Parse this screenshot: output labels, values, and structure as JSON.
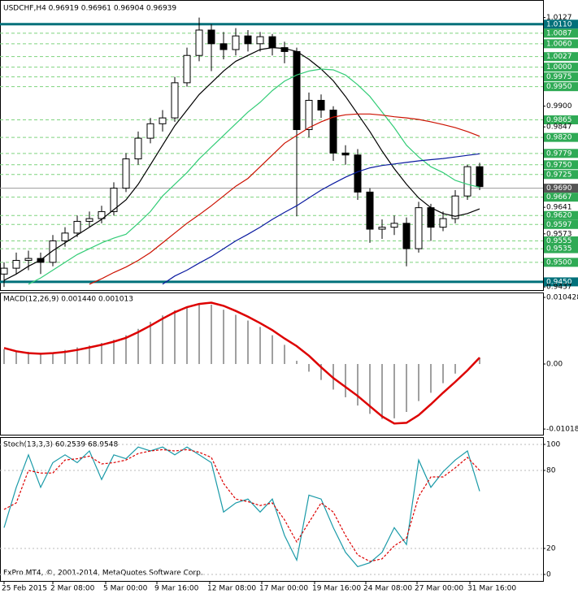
{
  "chart_data": [
    {
      "type": "candlestick",
      "title": "USDCHF,H4  0.96919 0.96961 0.96904 0.96939",
      "open": [
        0.947,
        0.9485,
        0.9505,
        0.951,
        0.95,
        0.9555,
        0.9575,
        0.9605,
        0.9612,
        0.963,
        0.969,
        0.9765,
        0.9818,
        0.9855,
        0.987,
        0.996,
        1.003,
        1.0095,
        1.006,
        1.0045,
        1.008,
        1.006,
        1.0078,
        1.005,
        1.004,
        0.984,
        0.9915,
        0.989,
        0.978,
        0.9775,
        0.968,
        0.9585,
        0.959,
        0.96,
        0.9535,
        0.964,
        0.959,
        0.9612,
        0.967,
        0.9745
      ],
      "high": [
        0.95,
        0.9525,
        0.953,
        0.9525,
        0.957,
        0.959,
        0.962,
        0.963,
        0.9645,
        0.9705,
        0.978,
        0.9835,
        0.987,
        0.989,
        0.9975,
        1.005,
        1.0127,
        1.011,
        1.009,
        1.01,
        1.0095,
        1.009,
        1.0085,
        1.0065,
        1.005,
        0.9935,
        0.993,
        0.99,
        0.98,
        0.979,
        0.969,
        0.961,
        0.962,
        0.9615,
        0.9655,
        0.965,
        0.963,
        0.9685,
        0.975,
        0.9755
      ],
      "low": [
        0.9437,
        0.947,
        0.948,
        0.947,
        0.949,
        0.954,
        0.9565,
        0.959,
        0.96,
        0.962,
        0.968,
        0.975,
        0.9805,
        0.9835,
        0.986,
        0.995,
        1.0015,
        0.999,
        1.002,
        1.003,
        1.004,
        1.004,
        1.003,
        1.001,
        0.9618,
        0.982,
        0.987,
        0.976,
        0.975,
        0.966,
        0.955,
        0.956,
        0.957,
        0.949,
        0.9525,
        0.9555,
        0.958,
        0.96,
        0.966,
        0.9685
      ],
      "close": [
        0.9485,
        0.9505,
        0.951,
        0.95,
        0.9555,
        0.9575,
        0.9605,
        0.9612,
        0.963,
        0.969,
        0.9765,
        0.9818,
        0.9855,
        0.987,
        0.996,
        1.003,
        1.0095,
        1.006,
        1.0045,
        1.008,
        1.006,
        1.0078,
        1.005,
        1.004,
        0.984,
        0.9915,
        0.989,
        0.978,
        0.9775,
        0.968,
        0.9585,
        0.959,
        0.96,
        0.9535,
        0.964,
        0.959,
        0.9612,
        0.967,
        0.9745,
        0.9694
      ],
      "series": [
        {
          "color": "#000000",
          "values": [
            0.9454,
            0.947,
            0.949,
            0.9506,
            0.953,
            0.955,
            0.957,
            0.959,
            0.961,
            0.9635,
            0.966,
            0.97,
            0.975,
            0.98,
            0.985,
            0.989,
            0.993,
            0.996,
            0.999,
            1.0015,
            1.003,
            1.0045,
            1.005,
            1.0048,
            1.004,
            1.002,
            0.9995,
            0.9965,
            0.9925,
            0.988,
            0.9835,
            0.9785,
            0.974,
            0.97,
            0.9665,
            0.964,
            0.9625,
            0.9618,
            0.9625,
            0.9637
          ]
        },
        {
          "color": "#33cc77",
          "values": [
            null,
            null,
            0.9444,
            0.946,
            0.948,
            0.95,
            0.952,
            0.9535,
            0.955,
            0.9562,
            0.9572,
            0.96,
            0.963,
            0.967,
            0.97,
            0.973,
            0.9765,
            0.9795,
            0.9825,
            0.9855,
            0.9885,
            0.991,
            0.994,
            0.9964,
            0.998,
            0.999,
            0.9995,
            0.9993,
            0.998,
            0.9955,
            0.9925,
            0.9885,
            0.9845,
            0.98,
            0.977,
            0.9745,
            0.973,
            0.971,
            0.97,
            0.9692
          ]
        },
        {
          "color": "#cc1100",
          "values": [
            null,
            null,
            null,
            null,
            null,
            null,
            null,
            0.9444,
            0.9458,
            0.9474,
            0.9488,
            0.9505,
            0.9525,
            0.955,
            0.9575,
            0.96,
            0.9622,
            0.9645,
            0.967,
            0.9695,
            0.9715,
            0.9745,
            0.9775,
            0.9805,
            0.9825,
            0.9845,
            0.986,
            0.9872,
            0.9878,
            0.988,
            0.988,
            0.9877,
            0.9873,
            0.987,
            0.9866,
            0.986,
            0.9853,
            0.9845,
            0.9835,
            0.9823
          ]
        },
        {
          "color": "#0a1aa0",
          "values": [
            null,
            null,
            null,
            null,
            null,
            null,
            null,
            null,
            null,
            null,
            null,
            null,
            null,
            0.9444,
            0.9465,
            0.948,
            0.9498,
            0.9515,
            0.9535,
            0.9555,
            0.9572,
            0.959,
            0.961,
            0.9628,
            0.9645,
            0.9665,
            0.9685,
            0.9702,
            0.9718,
            0.9732,
            0.9742,
            0.9748,
            0.9752,
            0.9756,
            0.976,
            0.9763,
            0.9766,
            0.977,
            0.9774,
            0.9778
          ]
        }
      ],
      "ylim": [
        0.9429,
        1.0172
      ],
      "yticks": [
        1.0127,
        {
          "value": 1.011,
          "label": "1.0110"
        },
        1.0087,
        {
          "value": 1.006,
          "label": "1.0060"
        },
        1.0027,
        {
          "value": 1,
          "label": "1.0000"
        },
        0.9975,
        {
          "value": 0.995,
          "label": "0.9950"
        },
        {
          "value": 0.99,
          "label": "0.9900"
        },
        0.9865,
        0.9847,
        {
          "value": 0.982,
          "label": "0.9820"
        },
        0.9779,
        {
          "value": 0.975,
          "label": "0.9750"
        },
        0.9725,
        {
          "value": 0.969,
          "label": "0.9690"
        },
        0.9667,
        0.9641,
        {
          "value": 0.962,
          "label": "0.9620"
        },
        0.9597,
        0.9573,
        0.9555,
        0.9535,
        {
          "value": 0.95,
          "label": "0.9500"
        },
        {
          "value": 0.945,
          "label": "0.9450"
        },
        0.9437
      ],
      "ytick_styles": [
        "plain",
        "line",
        "level",
        "level",
        "level",
        "level",
        "level",
        "level",
        "plain",
        "level",
        "plain",
        "level",
        "level",
        "level",
        "level",
        "price",
        "level",
        "plain",
        "level",
        "level",
        "plain",
        "level",
        "level",
        "level",
        "line",
        "plain"
      ]
    },
    {
      "type": "macd",
      "title": "MACD(12,26,9) 0.001440 0.001013",
      "histogram": {
        "color": "#a0a0a0",
        "values": [
          0.0023,
          0.0021,
          0.0019,
          0.0017,
          0.0018,
          0.0022,
          0.0026,
          0.0029,
          0.0033,
          0.0038,
          0.0045,
          0.0055,
          0.0066,
          0.0076,
          0.0084,
          0.009,
          0.0095,
          0.0093,
          0.0085,
          0.0077,
          0.0068,
          0.0058,
          0.0045,
          0.003,
          0.0005,
          -0.0012,
          -0.0025,
          -0.004,
          -0.0052,
          -0.0065,
          -0.0078,
          -0.0086,
          -0.0085,
          -0.0075,
          -0.0058,
          -0.0045,
          -0.003,
          -0.0015,
          0.0,
          0.001
        ]
      },
      "signal": {
        "color": "#dd0000",
        "values": [
          0.0025,
          0.002,
          0.0017,
          0.0016,
          0.0017,
          0.0019,
          0.0022,
          0.0026,
          0.003,
          0.0035,
          0.0041,
          0.005,
          0.006,
          0.0071,
          0.0081,
          0.0089,
          0.0094,
          0.0096,
          0.0091,
          0.0083,
          0.0074,
          0.0064,
          0.0053,
          0.004,
          0.0028,
          0.0013,
          -0.0005,
          -0.0022,
          -0.0036,
          -0.005,
          -0.0066,
          -0.0082,
          -0.0093,
          -0.0092,
          -0.008,
          -0.0063,
          -0.0045,
          -0.0028,
          -0.001,
          0.001
        ]
      },
      "ylim": [
        -0.01106,
        0.01119
      ],
      "yticks": [
        0.010428,
        {
          "value": 0,
          "label": "0.00"
        },
        -0.01018
      ]
    },
    {
      "type": "stoch",
      "title": "Stoch(13,3,3) 60.2539 68.9548",
      "series": [
        {
          "color": "#1a9aa8",
          "dash": false,
          "values": [
            36,
            67,
            92,
            67,
            86,
            92,
            86,
            95,
            73,
            92,
            89,
            98,
            95,
            98,
            92,
            98,
            92,
            86,
            48,
            55,
            58,
            48,
            58,
            30,
            11,
            61,
            58,
            36,
            17,
            6,
            9,
            17,
            36,
            23,
            88,
            67,
            79,
            88,
            95,
            64
          ]
        },
        {
          "color": "#dd0000",
          "dash": true,
          "values": [
            50,
            55,
            80,
            78,
            78,
            88,
            89,
            91,
            85,
            86,
            88,
            93,
            95,
            96,
            95,
            96,
            94,
            90,
            70,
            58,
            56,
            53,
            55,
            42,
            25,
            40,
            55,
            48,
            30,
            15,
            10,
            12,
            22,
            28,
            60,
            75,
            75,
            82,
            90,
            80
          ]
        }
      ],
      "ylim": [
        -5,
        105.6
      ],
      "yticks": [
        100,
        80,
        20,
        0
      ]
    }
  ],
  "x_axis_labels": [
    "25 Feb 2015",
    "2 Mar 08:00",
    "5 Mar 00:00",
    "9 Mar 16:00",
    "12 Mar 08:00",
    "17 Mar 00:00",
    "19 Mar 16:00",
    "24 Mar 08:00",
    "27 Mar 00:00",
    "31 Mar 16:00"
  ],
  "footer": "FxPro MT4, ©, 2001-2014, MetaQuotes Software Corp."
}
